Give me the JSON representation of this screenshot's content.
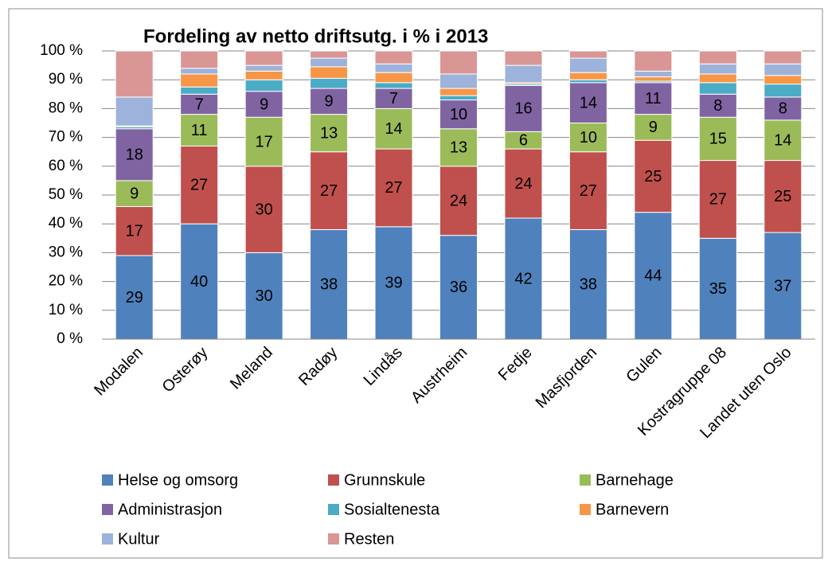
{
  "chart_data": {
    "type": "stacked_bar",
    "title": "Fordeling av netto driftsutg. i % i 2013",
    "categories": [
      "Modalen",
      "Osterøy",
      "Meland",
      "Radøy",
      "Lindås",
      "Austrheim",
      "Fedje",
      "Masfjorden",
      "Gulen",
      "Kostragruppe 08",
      "Landet uten Oslo"
    ],
    "series": [
      {
        "name": "Helse og omsorg",
        "color": "#4f81bd",
        "data_labels": true,
        "values": [
          29,
          40,
          30,
          38,
          39,
          36,
          42,
          38,
          44,
          35,
          37
        ]
      },
      {
        "name": "Grunnskule",
        "color": "#c0504d",
        "data_labels": true,
        "values": [
          17,
          27,
          30,
          27,
          27,
          24,
          24,
          27,
          25,
          27,
          25
        ]
      },
      {
        "name": "Barnehage",
        "color": "#9bbb59",
        "data_labels": true,
        "values": [
          9,
          11,
          17,
          13,
          14,
          13,
          6,
          10,
          9,
          15,
          14
        ]
      },
      {
        "name": "Administrasjon",
        "color": "#8064a2",
        "data_labels": true,
        "values": [
          18,
          7,
          9,
          9,
          7,
          10,
          16,
          14,
          11,
          8,
          8
        ]
      },
      {
        "name": "Sosialtenesta",
        "color": "#4bacc6",
        "data_labels": false,
        "values": [
          0.7,
          2.5,
          4,
          3.5,
          2,
          1.5,
          0.5,
          1,
          0.5,
          4,
          4.5
        ]
      },
      {
        "name": "Barnevern",
        "color": "#f79646",
        "data_labels": false,
        "values": [
          0.3,
          4.5,
          3,
          4,
          3.5,
          2.5,
          0.5,
          2.5,
          1.5,
          3,
          3
        ]
      },
      {
        "name": "Kultur",
        "color": "#9db3db",
        "data_labels": false,
        "values": [
          10,
          2,
          2,
          3,
          3,
          5,
          6,
          5,
          2,
          3.5,
          4
        ]
      },
      {
        "name": "Resten",
        "color": "#d99694",
        "data_labels": false,
        "values": [
          16,
          6,
          5,
          2.5,
          4.5,
          8,
          5,
          2.5,
          7,
          4.5,
          4.5
        ]
      }
    ],
    "ylim": [
      0,
      100
    ],
    "yticks": [
      {
        "value": 0,
        "label": "0 %"
      },
      {
        "value": 10,
        "label": "10 %"
      },
      {
        "value": 20,
        "label": "20 %"
      },
      {
        "value": 30,
        "label": "30 %"
      },
      {
        "value": 40,
        "label": "40 %"
      },
      {
        "value": 50,
        "label": "50 %"
      },
      {
        "value": 60,
        "label": "60 %"
      },
      {
        "value": 70,
        "label": "70 %"
      },
      {
        "value": 80,
        "label": "80 %"
      },
      {
        "value": 90,
        "label": "90 %"
      },
      {
        "value": 100,
        "label": "100 %"
      }
    ],
    "grid": true
  }
}
